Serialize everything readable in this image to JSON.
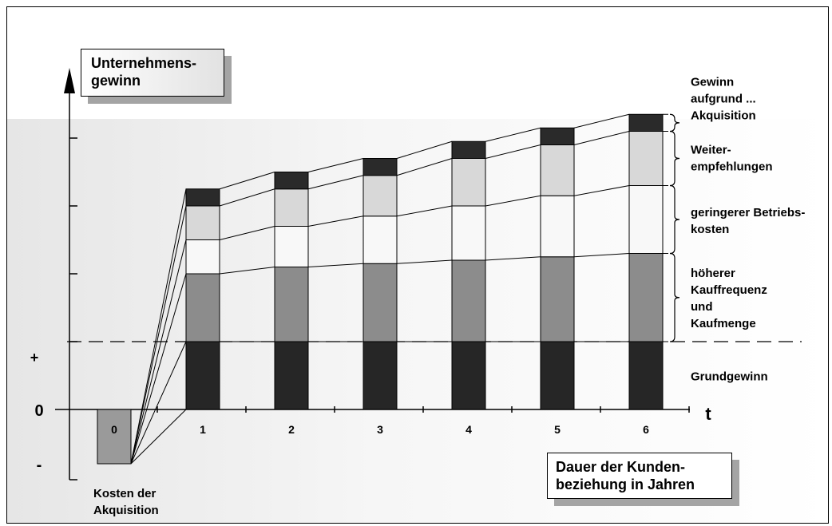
{
  "chart_data": {
    "type": "bar",
    "stacked": true,
    "ylabel": "Unternehmens-\ngewinn",
    "xlabel": "Dauer der Kunden-\nbeziehung in Jahren",
    "x_axis_symbol": "t",
    "y_zero_label": "0",
    "y_plus_label": "+",
    "y_minus_label": "-",
    "categories": [
      "0",
      "1",
      "2",
      "3",
      "4",
      "5",
      "6"
    ],
    "acquisition_cost": {
      "category": "0",
      "value": -0.8,
      "label": "Kosten der\nAkquisition",
      "color": "#9a9a9a"
    },
    "series": [
      {
        "name": "Grundgewinn",
        "color": "#262626",
        "values": [
          0,
          1.0,
          1.0,
          1.0,
          1.0,
          1.0,
          1.0
        ]
      },
      {
        "name": "höherer\nKauffrequenz\nund\nKaufmenge",
        "color": "#8c8c8c",
        "values": [
          0,
          1.0,
          1.1,
          1.15,
          1.2,
          1.25,
          1.3
        ]
      },
      {
        "name": "geringerer Betriebs-\nkosten",
        "color": "#f8f8f8",
        "values": [
          0,
          0.5,
          0.6,
          0.7,
          0.8,
          0.9,
          1.0
        ]
      },
      {
        "name": "Weiter-\nempfehlungen",
        "color": "#d8d8d8",
        "values": [
          0,
          0.5,
          0.55,
          0.6,
          0.7,
          0.75,
          0.8
        ]
      },
      {
        "name": "Gewinn\naufgrund ...\nAkquisition",
        "color": "#2a2a2a",
        "values": [
          0,
          0.25,
          0.25,
          0.25,
          0.25,
          0.25,
          0.25
        ]
      }
    ],
    "ylim": [
      -1.0,
      5.0
    ],
    "reference_line": {
      "value": 1.0,
      "style": "dashed"
    },
    "grid": false,
    "legend_placement": "right"
  }
}
